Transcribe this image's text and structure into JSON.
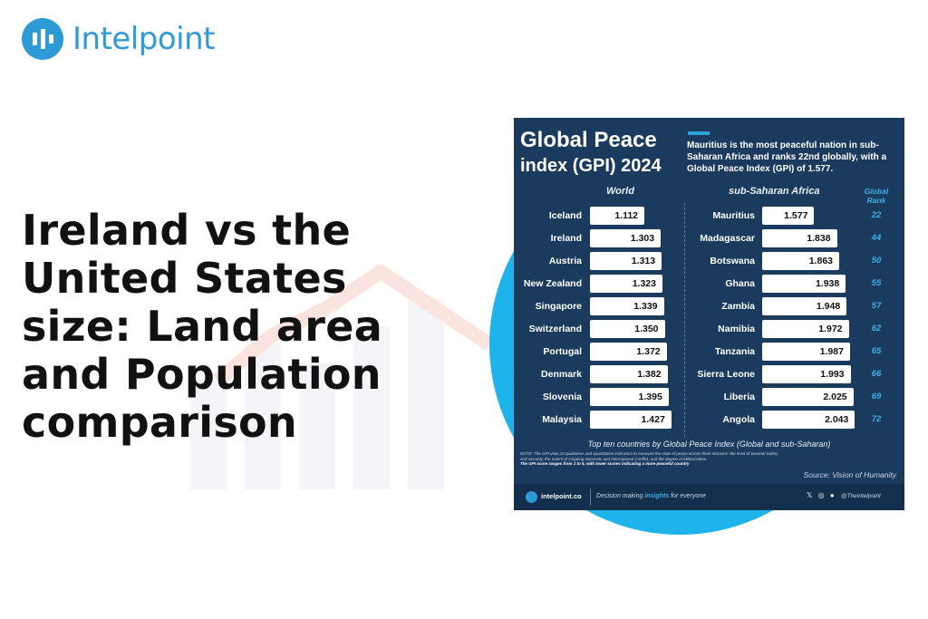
{
  "brand": {
    "name": "Intelpoint"
  },
  "headline": "Ireland vs the United States size: Land area and Population comparison",
  "infographic": {
    "title_line1": "Global Peace",
    "title_line2": "index (GPI) 2024",
    "subtitle": "Mauritius is the most peaceful nation in sub-Saharan Africa and ranks 22nd globally, with a Global Peace Index (GPI) of 1.577.",
    "world_header": "World",
    "africa_header": "sub-Saharan Africa",
    "rank_header": "Global Rank",
    "caption": "Top ten countries by Global Peace Index (Global and sub-Saharan)",
    "note_line1": "NOTE: The GPI uses 23 qualitative and quantitative indicators to measure the state of peace across three domains: the level of Societal Safety and Security, the extent of Ongoing Domestic and International Conflict, and the degree of Militarisation.",
    "note_line2": "The GPI score ranges from 1 to 5, with lower scores indicating a more peaceful country",
    "source": "Source: Vision of Humanity",
    "footer_brand": "intelpoint.co",
    "footer_tag_pre": "Decision making ",
    "footer_tag_bold": "insights",
    "footer_tag_post": " for everyone",
    "footer_social": "𝕏 ◎ ●",
    "footer_handle": "@Theintelpoint"
  },
  "chart_data": [
    {
      "type": "bar",
      "title": "World",
      "categories": [
        "Iceland",
        "Ireland",
        "Austria",
        "New Zealand",
        "Singapore",
        "Switzerland",
        "Portugal",
        "Denmark",
        "Slovenia",
        "Malaysia"
      ],
      "values": [
        1.112,
        1.303,
        1.313,
        1.323,
        1.339,
        1.35,
        1.372,
        1.382,
        1.395,
        1.427
      ],
      "labels": [
        "1.112",
        "1.303",
        "1.313",
        "1.323",
        "1.339",
        "1.350",
        "1.372",
        "1.382",
        "1.395",
        "1.427"
      ]
    },
    {
      "type": "bar",
      "title": "sub-Saharan Africa",
      "categories": [
        "Mauritius",
        "Madagascar",
        "Botswana",
        "Ghana",
        "Zambia",
        "Namibia",
        "Tanzania",
        "Sierra Leone",
        "Liberia",
        "Angola"
      ],
      "values": [
        1.577,
        1.838,
        1.863,
        1.938,
        1.948,
        1.972,
        1.987,
        1.993,
        2.025,
        2.043
      ],
      "labels": [
        "1.577",
        "1.838",
        "1.863",
        "1.938",
        "1.948",
        "1.972",
        "1.987",
        "1.993",
        "2.025",
        "2.043"
      ],
      "global_rank": [
        "22",
        "44",
        "50",
        "55",
        "57",
        "62",
        "65",
        "66",
        "69",
        "72"
      ]
    }
  ]
}
